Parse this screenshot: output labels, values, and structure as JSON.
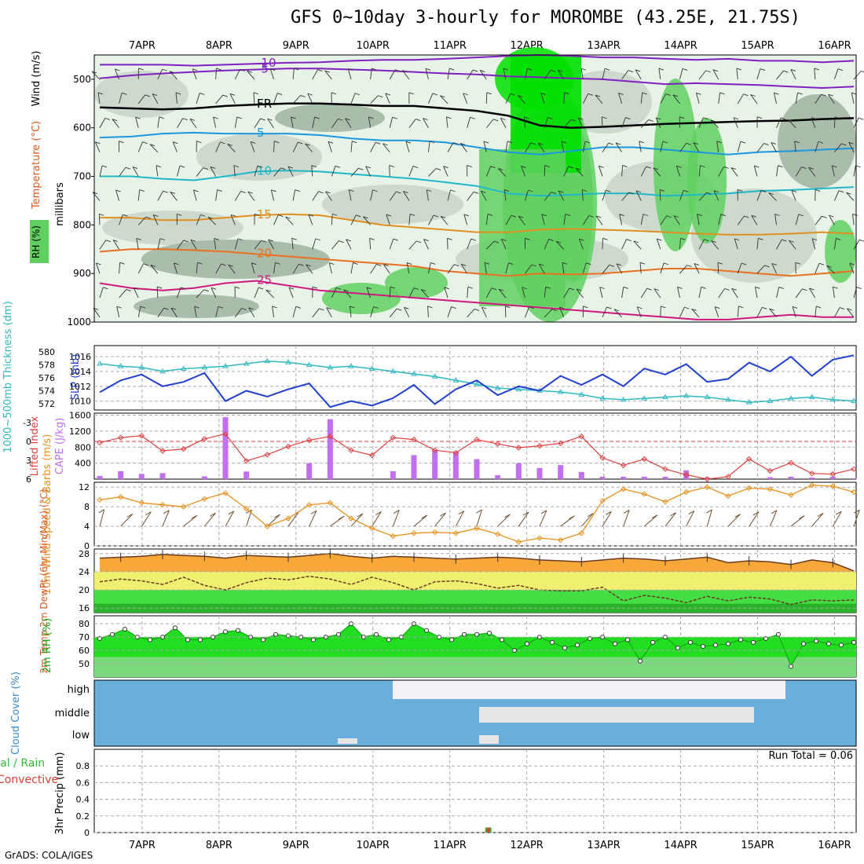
{
  "title": "GFS 0~10day 3-hourly for MOROMBE (43.25E, 21.75S)",
  "credit": "GrADS: COLA/IGES",
  "colors": {
    "rh_light": "#e8f3e8",
    "rh_mid": "#c8d4c8",
    "rh_dark": "#9fb29f",
    "rh_green": "#5fd05f",
    "rh_bright": "#00e000",
    "slp": "#1f3fd0",
    "thickness": "#30b8c0",
    "lifted": "#e04040",
    "cape": "#c070f0",
    "wind_speed": "#e8901c",
    "barb": "#705030",
    "temp_fill": "#f7a838",
    "temp_line": "#6a3a20",
    "dew_fill": "#f0f070",
    "rh2m_fill": "#22dd22",
    "rh2m_dark": "#11aa11",
    "cloud": "#6aaedc",
    "cloud_gap": "#f4f2f8",
    "cloud_mid_gap": "#e6e6e6",
    "precip_total": "#33bb33",
    "precip_conv": "#e04030"
  },
  "chart_data": {
    "type": "meteogram",
    "x_labels": [
      "7APR",
      "8APR",
      "9APR",
      "10APR",
      "11APR",
      "12APR",
      "13APR",
      "14APR",
      "15APR",
      "16APR"
    ],
    "panels": [
      {
        "id": "upper_air",
        "ylabel": "millibars",
        "legend_labels": [
          "Wind (m/s)",
          "Temperature (°C)",
          "RH (%)"
        ],
        "y_ticks": [
          500,
          600,
          700,
          800,
          900,
          1000
        ],
        "ylim": [
          450,
          1000
        ],
        "isotherms": [
          {
            "label": "-10",
            "color": "#8020c0",
            "p": [
              470,
              470,
              470,
              472,
              470,
              468,
              466,
              465,
              462,
              460,
              460,
              458,
              455,
              452,
              450,
              452,
              455,
              455,
              458,
              460,
              458,
              462,
              462,
              465,
              462
            ]
          },
          {
            "label": "-5",
            "color": "#8020c0",
            "p": [
              498,
              492,
              488,
              485,
              482,
              480,
              478,
              478,
              480,
              482,
              485,
              488,
              490,
              494,
              496,
              498,
              500,
              505,
              510,
              508,
              510,
              512,
              515,
              518,
              515
            ]
          },
          {
            "label": "FR",
            "color": "#000000",
            "p": [
              558,
              560,
              562,
              560,
              555,
              552,
              550,
              550,
              552,
              555,
              555,
              560,
              565,
              575,
              595,
              600,
              598,
              595,
              592,
              590,
              588,
              586,
              585,
              582,
              580
            ]
          },
          {
            "label": "5",
            "color": "#1a98e0",
            "p": [
              620,
              618,
              612,
              610,
              612,
              612,
              612,
              615,
              622,
              626,
              626,
              630,
              640,
              650,
              655,
              648,
              640,
              640,
              645,
              650,
              655,
              650,
              648,
              645,
              642
            ]
          },
          {
            "label": "10",
            "color": "#20b8c8",
            "p": [
              700,
              700,
              705,
              708,
              700,
              690,
              688,
              690,
              695,
              700,
              705,
              712,
              720,
              735,
              740,
              738,
              735,
              735,
              740,
              738,
              735,
              730,
              728,
              725,
              722
            ]
          },
          {
            "label": "15",
            "color": "#e09020",
            "p": [
              785,
              785,
              790,
              790,
              785,
              780,
              778,
              780,
              790,
              800,
              805,
              810,
              815,
              815,
              810,
              808,
              810,
              812,
              815,
              818,
              820,
              820,
              818,
              815,
              818
            ]
          },
          {
            "label": "20",
            "color": "#e87020",
            "p": [
              855,
              850,
              850,
              852,
              855,
              860,
              865,
              870,
              875,
              880,
              885,
              895,
              900,
              905,
              900,
              902,
              900,
              895,
              890,
              890,
              895,
              900,
              905,
              900,
              895
            ]
          },
          {
            "label": "25",
            "color": "#d01880",
            "p": [
              920,
              930,
              935,
              930,
              920,
              915,
              925,
              935,
              940,
              945,
              950,
              955,
              960,
              965,
              970,
              975,
              980,
              985,
              990,
              995,
              995,
              990,
              985,
              990,
              990
            ]
          }
        ]
      },
      {
        "id": "slp_thickness",
        "ylabel_left": "1000~500mb Thickness (dm)",
        "ylabel_right": "SLP (mb)",
        "left_ticks": [
          572,
          574,
          576,
          578,
          580
        ],
        "right_ticks": [
          1010,
          1012,
          1014,
          1016
        ],
        "thickness": [
          578.2,
          577.8,
          577.6,
          577.0,
          577.4,
          577.6,
          577.8,
          578.2,
          578.6,
          578.4,
          578.0,
          577.6,
          577.8,
          577.4,
          577.0,
          576.6,
          576.2,
          575.6,
          575.0,
          574.4,
          574.2,
          574.0,
          573.8,
          573.4,
          572.8,
          572.6,
          572.8,
          573.0,
          573.2,
          573.0,
          572.6,
          572.2,
          572.4,
          572.8,
          573.0,
          572.6,
          572.4
        ],
        "slp": [
          1011.2,
          1012.8,
          1013.6,
          1012.0,
          1012.6,
          1013.8,
          1010.0,
          1011.4,
          1010.6,
          1011.6,
          1012.4,
          1009.2,
          1010.0,
          1009.4,
          1010.4,
          1012.2,
          1009.6,
          1011.6,
          1012.8,
          1010.8,
          1012.0,
          1011.4,
          1013.4,
          1012.2,
          1013.6,
          1012.0,
          1014.4,
          1013.6,
          1015.0,
          1012.6,
          1013.0,
          1015.2,
          1014.0,
          1016.0,
          1013.4,
          1015.6,
          1016.2
        ]
      },
      {
        "id": "cape_li",
        "ylabel_left": "Lifted Index",
        "ylabel_right": "CAPE (J/kg)",
        "li_ticks": [
          -3,
          0,
          3,
          6
        ],
        "cape_ticks": [
          400,
          800,
          1200,
          1600
        ],
        "lifted_index": [
          0.2,
          -0.6,
          -0.9,
          1.5,
          1.2,
          -0.4,
          -1.2,
          3.1,
          2.1,
          0.8,
          -0.2,
          -0.8,
          1.4,
          2.2,
          -0.6,
          -0.3,
          1.4,
          1.8,
          -0.3,
          0.4,
          1.0,
          0.7,
          0.3,
          -0.8,
          2.6,
          3.8,
          2.8,
          4.4,
          5.3,
          6.0,
          5.6,
          2.8,
          4.7,
          3.4,
          5.1,
          5.2,
          4.4
        ],
        "cape": [
          80,
          200,
          130,
          150,
          0,
          70,
          1550,
          190,
          0,
          0,
          400,
          1500,
          0,
          0,
          200,
          600,
          720,
          680,
          500,
          100,
          400,
          280,
          350,
          180,
          60,
          60,
          60,
          60,
          220,
          40,
          0,
          0,
          50,
          60,
          40,
          60,
          20
        ]
      },
      {
        "id": "wind10m",
        "ylabel": "10m Wind Speed & Barbs (m/s)",
        "y_ticks": [
          0,
          4,
          8,
          12
        ],
        "ylim": [
          0,
          13
        ],
        "speed": [
          9.4,
          10.0,
          8.8,
          8.4,
          8.0,
          9.6,
          10.8,
          7.6,
          4.0,
          5.6,
          8.4,
          8.8,
          5.6,
          3.6,
          2.0,
          2.6,
          2.8,
          2.6,
          3.6,
          2.4,
          0.8,
          1.6,
          1.2,
          2.6,
          9.2,
          11.6,
          10.6,
          9.0,
          11.0,
          12.0,
          10.2,
          11.8,
          11.6,
          10.4,
          12.4,
          12.2,
          11.0
        ]
      },
      {
        "id": "temp2m",
        "ylabel": "2m Temp 2m DewPt (6hr Min/Max) (°C)",
        "y_ticks": [
          16,
          20,
          24,
          28
        ],
        "ylim": [
          15,
          29
        ],
        "temperature": [
          27.0,
          27.2,
          27.4,
          27.8,
          27.6,
          27.4,
          27.0,
          27.6,
          27.4,
          27.2,
          27.6,
          28.0,
          27.4,
          27.0,
          27.4,
          27.2,
          27.0,
          26.8,
          27.0,
          27.2,
          27.0,
          26.6,
          26.4,
          26.2,
          26.6,
          27.0,
          26.8,
          26.4,
          26.8,
          27.2,
          26.0,
          26.4,
          26.2,
          25.6,
          26.6,
          26.0,
          24.2
        ],
        "dewpoint": [
          21.8,
          22.4,
          22.0,
          21.2,
          22.8,
          21.0,
          20.0,
          21.6,
          22.6,
          22.2,
          23.0,
          22.4,
          21.2,
          22.8,
          21.6,
          20.0,
          21.8,
          22.0,
          21.4,
          20.4,
          21.0,
          20.0,
          19.8,
          19.8,
          20.6,
          17.6,
          18.8,
          18.2,
          17.2,
          18.6,
          17.6,
          18.4,
          18.0,
          16.8,
          17.8,
          17.6,
          17.8
        ]
      },
      {
        "id": "rh2m",
        "ylabel": "2m RH (%)",
        "y_ticks": [
          50,
          60,
          70,
          80
        ],
        "ylim": [
          40,
          86
        ],
        "rh": [
          69,
          72,
          76,
          70,
          68,
          70,
          77,
          68,
          68,
          70,
          74,
          75,
          70,
          68,
          72,
          71,
          70,
          68,
          70,
          72,
          80,
          70,
          72,
          68,
          70,
          80,
          75,
          70,
          68,
          72,
          72,
          73,
          68,
          60,
          65,
          70,
          66,
          62,
          64,
          69,
          70,
          65,
          68,
          52,
          66,
          70,
          62,
          66,
          63,
          64,
          65,
          68,
          66,
          69,
          72,
          48,
          65,
          67,
          65,
          64,
          66
        ]
      },
      {
        "id": "cloud",
        "ylabel": "Cloud Cover (%)",
        "levels": [
          "high",
          "middle",
          "low"
        ]
      },
      {
        "id": "precip",
        "ylabel_left": "Total / Rain Convective",
        "ylabel_right": "3hr Precip (mm)",
        "y_ticks": [
          0,
          0.2,
          0.4,
          0.6,
          0.8
        ],
        "ylim": [
          0,
          1.0
        ],
        "annotation": "Run Total = 0.06",
        "bar": {
          "day": 11.5,
          "total": 0.06,
          "convective": 0.06
        }
      }
    ]
  }
}
